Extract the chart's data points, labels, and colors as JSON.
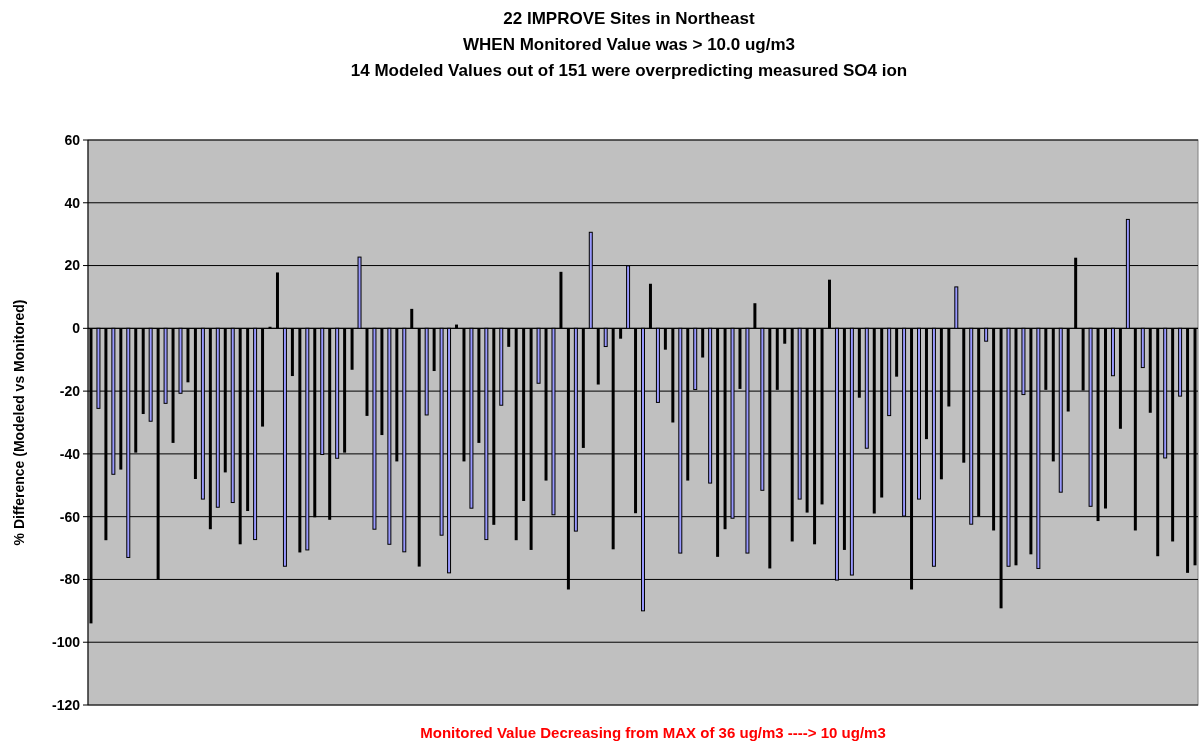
{
  "chart_data": {
    "type": "bar",
    "title": "22 IMPROVE Sites in Northeast\nWHEN Monitored Value was > 10.0 ug/m3\n14 Modeled Values out of 151 were overpredicting measured SO4 ion",
    "xlabel": "Monitored Value Decreasing from MAX of 36 ug/m3 ---->  10 ug/m3",
    "ylabel": "% Difference (Modeled vs Monitored)",
    "categories": [
      null,
      null,
      null,
      null,
      null,
      null,
      null,
      null,
      null,
      null,
      null,
      null,
      null,
      null,
      null,
      null,
      null,
      null,
      null,
      null,
      null,
      null,
      null,
      null,
      null,
      null,
      null,
      null,
      null,
      null,
      null,
      null,
      null,
      null,
      null,
      null,
      null,
      null,
      null,
      null,
      null,
      null,
      null,
      null,
      null,
      null,
      null,
      null,
      null,
      null,
      null,
      null,
      null,
      null,
      null,
      null,
      null,
      null,
      null,
      null,
      null,
      null,
      null,
      null,
      null,
      null,
      null,
      null,
      null,
      null,
      null,
      null,
      null,
      null,
      null,
      null,
      null,
      null,
      null,
      null,
      null,
      null,
      null,
      null,
      null,
      null,
      null,
      null,
      null,
      null,
      null,
      null,
      null,
      null,
      null,
      null,
      null,
      null,
      null,
      null,
      null,
      null,
      null,
      null,
      null,
      null,
      null,
      null,
      null,
      null,
      null,
      null,
      null,
      null,
      null,
      null,
      null,
      null,
      null,
      null,
      null,
      null,
      null,
      null,
      null,
      null,
      null,
      null,
      null,
      null,
      null,
      null,
      null,
      null,
      null,
      null,
      null,
      null,
      null,
      null,
      null,
      null,
      null,
      null,
      null,
      null,
      null,
      null,
      null
    ],
    "values": [
      -94,
      -25.5,
      -67.5,
      -46.5,
      -45,
      -73,
      -39.6,
      -27.3,
      -29.6,
      -80,
      -23.9,
      -36.5,
      -20.7,
      -17.2,
      -48,
      -54.4,
      -64,
      -57,
      -45.9,
      -55.5,
      -68.8,
      -58.2,
      -67.3,
      -31.3,
      0.5,
      17.8,
      -75.8,
      -15.2,
      -71.4,
      -70.6,
      -60.2,
      -40.2,
      -61,
      -41.4,
      -39.6,
      -13.2,
      22.7,
      -27.9,
      -64,
      -34,
      -68.8,
      -42.4,
      -71.2,
      6.2,
      -75.9,
      -27.6,
      -13.6,
      -65.9,
      -77.9,
      1.2,
      -42.4,
      -57.3,
      -36.5,
      -67.3,
      -62.6,
      -24.5,
      -5.9,
      -67.5,
      -55,
      -70.6,
      -17.5,
      -48.5,
      -59.4,
      18,
      -83.2,
      -64.6,
      -38.1,
      30.6,
      -17.9,
      -5.8,
      -70.4,
      -3.3,
      19.9,
      -58.9,
      -90,
      14.2,
      -23.6,
      -6.8,
      -30,
      -71.6,
      -48.5,
      -19.5,
      -9.3,
      -49.3,
      -72.8,
      -64,
      -60.5,
      -19.3,
      -71.6,
      8,
      -51.6,
      -76.5,
      -19.6,
      -4.9,
      -67.9,
      -54.4,
      -58.7,
      -68.8,
      -56.1,
      15.5,
      -80.2,
      -70.6,
      -78.6,
      -22.1,
      -38.2,
      -59,
      -53.9,
      -27.8,
      -15.4,
      -59.8,
      -83.2,
      -54.4,
      -35.3,
      -75.8,
      -48.1,
      -24.9,
      13.2,
      -42.8,
      -62.4,
      -59.9,
      -4.1,
      -64.4,
      -89.2,
      -75.8,
      -75.5,
      -21.1,
      -72,
      -76.5,
      -19.6,
      -42.4,
      -52.2,
      -26.5,
      22.5,
      -19.8,
      -56.7,
      -61.4,
      -57.4,
      -15.1,
      -32,
      34.7,
      -64.4,
      -12.5,
      -26.9,
      -72.6,
      -41.3,
      -67.9,
      -21.6,
      -77.9,
      -75.5
    ],
    "colors": [
      "#000000",
      "#9999ff",
      "#000000",
      "#9999ff",
      "#000000",
      "#9999ff",
      "#000000",
      "#000000",
      "#9999ff",
      "#000000",
      "#9999ff",
      "#000000",
      "#9999ff",
      "#000000",
      "#000000",
      "#9999ff",
      "#000000",
      "#9999ff",
      "#000000",
      "#9999ff",
      "#000000",
      "#000000",
      "#9999ff",
      "#000000",
      "#000000",
      "#000000",
      "#9999ff",
      "#000000",
      "#000000",
      "#9999ff",
      "#000000",
      "#9999ff",
      "#000000",
      "#9999ff",
      "#000000",
      "#000000",
      "#9999ff",
      "#000000",
      "#9999ff",
      "#000000",
      "#9999ff",
      "#000000",
      "#9999ff",
      "#000000",
      "#000000",
      "#9999ff",
      "#000000",
      "#9999ff",
      "#9999ff",
      "#000000",
      "#000000",
      "#9999ff",
      "#000000",
      "#9999ff",
      "#000000",
      "#9999ff",
      "#000000",
      "#000000",
      "#000000",
      "#000000",
      "#9999ff",
      "#000000",
      "#9999ff",
      "#000000",
      "#000000",
      "#9999ff",
      "#000000",
      "#9999ff",
      "#000000",
      "#9999ff",
      "#000000",
      "#000000",
      "#9999ff",
      "#000000",
      "#9999ff",
      "#000000",
      "#9999ff",
      "#000000",
      "#000000",
      "#9999ff",
      "#000000",
      "#9999ff",
      "#000000",
      "#9999ff",
      "#000000",
      "#000000",
      "#9999ff",
      "#000000",
      "#9999ff",
      "#000000",
      "#9999ff",
      "#000000",
      "#000000",
      "#000000",
      "#000000",
      "#9999ff",
      "#000000",
      "#000000",
      "#000000",
      "#000000",
      "#9999ff",
      "#000000",
      "#9999ff",
      "#000000",
      "#9999ff",
      "#000000",
      "#000000",
      "#9999ff",
      "#000000",
      "#9999ff",
      "#000000",
      "#9999ff",
      "#000000",
      "#9999ff",
      "#000000",
      "#000000",
      "#9999ff",
      "#000000",
      "#9999ff",
      "#000000",
      "#9999ff",
      "#000000",
      "#000000",
      "#9999ff",
      "#000000",
      "#9999ff",
      "#000000",
      "#9999ff",
      "#000000",
      "#000000",
      "#9999ff",
      "#000000",
      "#000000",
      "#000000",
      "#9999ff",
      "#000000",
      "#000000",
      "#9999ff",
      "#000000",
      "#9999ff",
      "#000000",
      "#9999ff",
      "#000000",
      "#000000",
      "#9999ff",
      "#000000",
      "#9999ff",
      "#000000",
      "#000000"
    ],
    "ylim": [
      -120,
      60
    ],
    "yticks": [
      -120,
      -100,
      -80,
      -60,
      -40,
      -20,
      0,
      20,
      40,
      60
    ],
    "grid": "y"
  }
}
